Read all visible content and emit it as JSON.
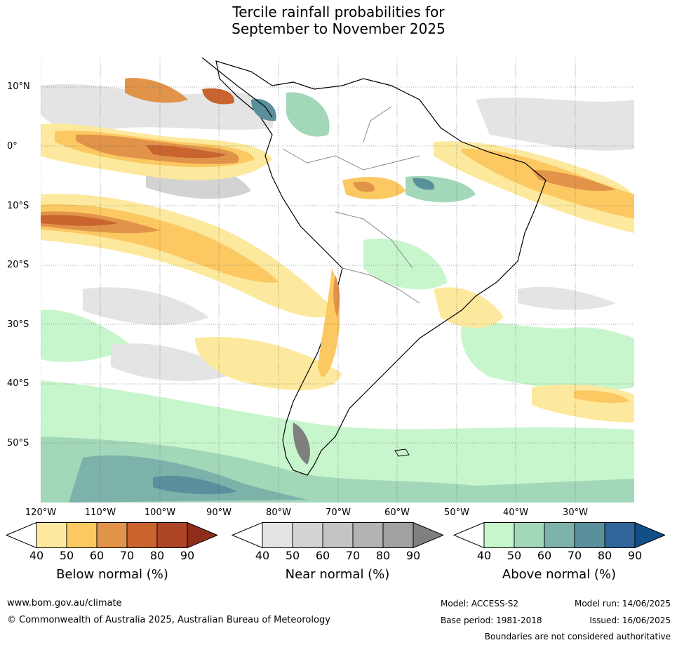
{
  "title_line1": "Tercile rainfall probabilities for",
  "title_line2": "September to November 2025",
  "map": {
    "lat_labels": [
      "10°N",
      "0°",
      "10°S",
      "20°S",
      "30°S",
      "40°S",
      "50°S"
    ],
    "lon_labels": [
      "120°W",
      "110°W",
      "100°W",
      "90°W",
      "80°W",
      "70°W",
      "60°W",
      "50°W",
      "40°W",
      "30°W"
    ]
  },
  "legends": [
    {
      "title": "Below normal (%)",
      "ticks": [
        "40",
        "50",
        "60",
        "70",
        "80",
        "90"
      ],
      "colors": [
        "#ffffff",
        "#fde99d",
        "#fcc862",
        "#e19449",
        "#c9642f",
        "#ad4526",
        "#8f2d1b"
      ]
    },
    {
      "title": "Near normal (%)",
      "ticks": [
        "40",
        "50",
        "60",
        "70",
        "80",
        "90"
      ],
      "colors": [
        "#ffffff",
        "#e4e4e4",
        "#d3d3d3",
        "#c4c4c4",
        "#b3b3b3",
        "#a1a1a1",
        "#7f7f7f"
      ]
    },
    {
      "title": "Above normal (%)",
      "ticks": [
        "40",
        "50",
        "60",
        "70",
        "80",
        "90"
      ],
      "colors": [
        "#ffffff",
        "#c8f6cc",
        "#a3d7b9",
        "#7db2aa",
        "#5a8f9c",
        "#2f6599",
        "#114f86"
      ]
    }
  ],
  "footer": {
    "website": "www.bom.gov.au/climate",
    "copyright": "© Commonwealth of Australia 2025, Australian Bureau of Meteorology",
    "model": "Model: ACCESS-S2",
    "model_run": "Model run: 14/06/2025",
    "base_period": "Base period: 1981-2018",
    "issued": "Issued: 16/06/2025",
    "boundaries": "Boundaries are not considered authoritative"
  }
}
